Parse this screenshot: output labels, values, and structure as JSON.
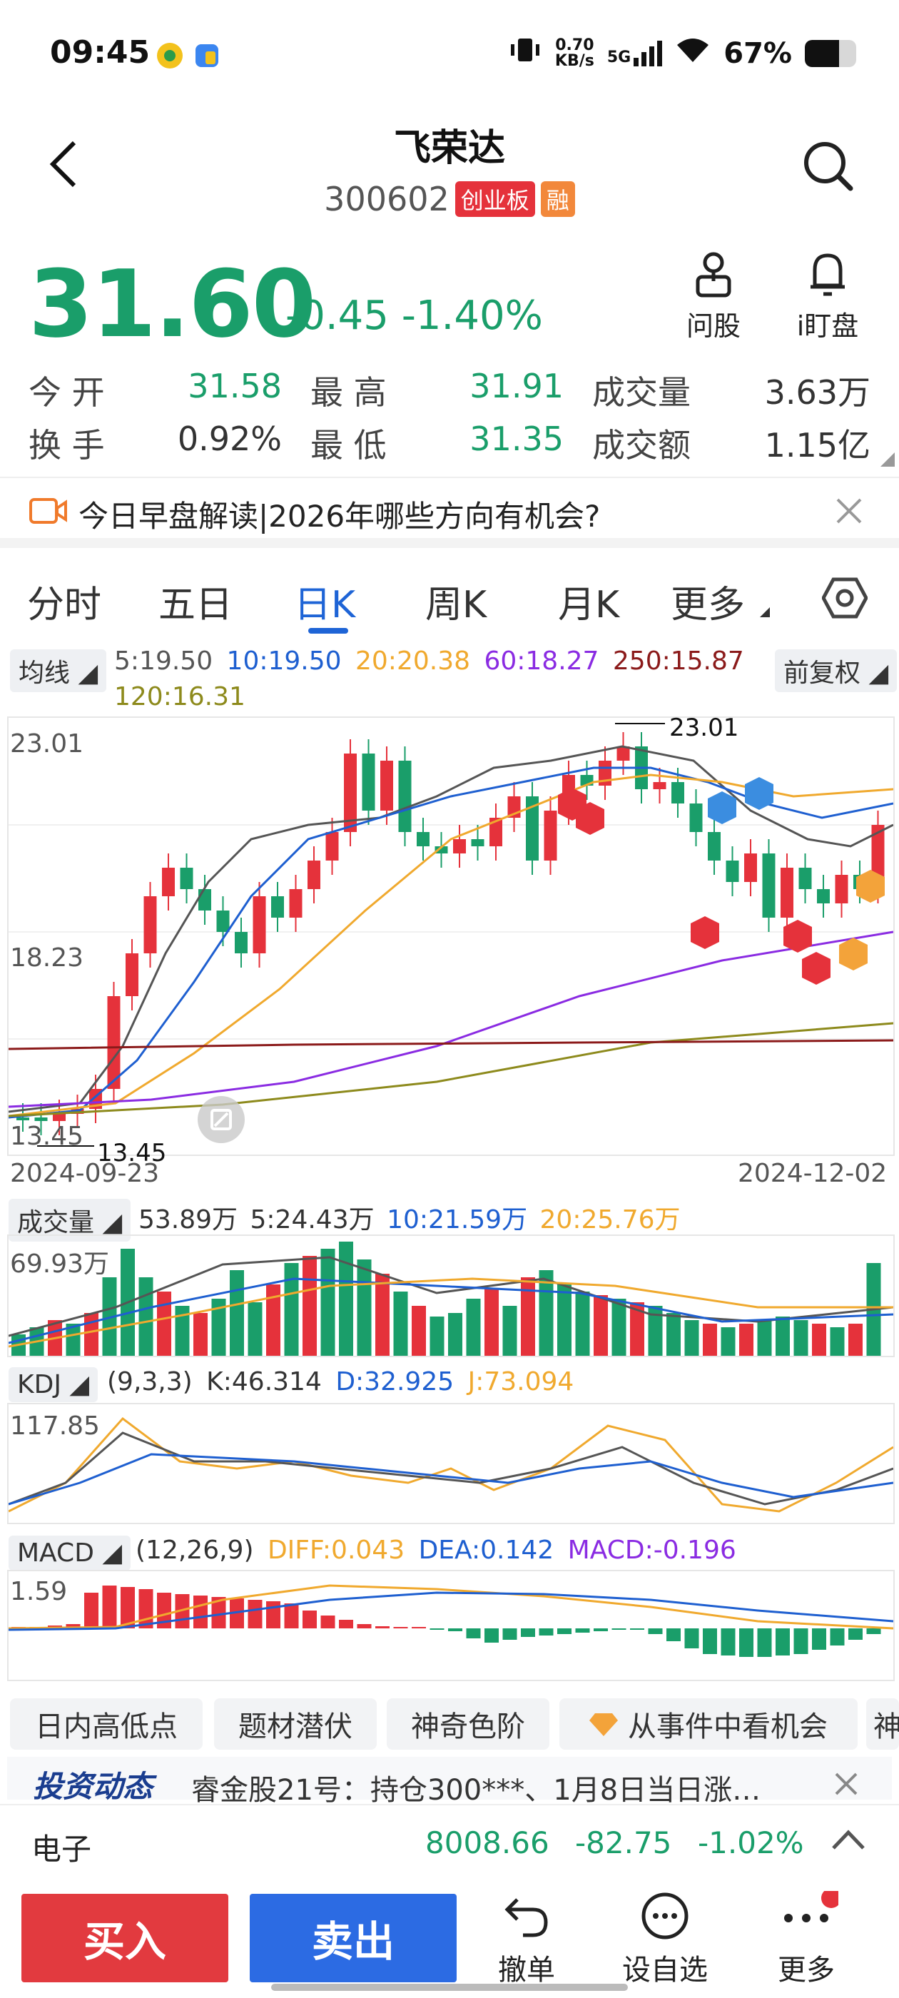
{
  "status": {
    "time": "09:45",
    "speed": "0.70",
    "speed_unit": "KB/s",
    "network": "5G",
    "battery": "67%"
  },
  "header": {
    "name": "飞荣达",
    "code": "300602",
    "badge_board": "创业板",
    "badge_margin": "融"
  },
  "quote": {
    "price": "31.60",
    "change": "-0.45",
    "change_pct": "-1.40%",
    "open_label": "今 开",
    "open": "31.58",
    "high_label": "最 高",
    "high": "31.91",
    "volume_label": "成交量",
    "volume": "3.63万",
    "turnover_label": "换 手",
    "turnover": "0.92%",
    "low_label": "最 低",
    "low": "31.35",
    "amount_label": "成交额",
    "amount": "1.15亿"
  },
  "tools": {
    "ask": "问股",
    "watch": "i盯盘"
  },
  "news": {
    "text": "今日早盘解读|2026年哪些方向有机会?"
  },
  "tabs": [
    "分时",
    "五日",
    "日K",
    "周K",
    "月K",
    "更多"
  ],
  "ma_bar": {
    "chip": "均线",
    "ma5": "5:19.50",
    "ma10": "10:19.50",
    "ma20": "20:20.38",
    "ma60": "60:18.27",
    "ma250": "250:15.87",
    "ma120": "120:16.31",
    "adjust": "前复权"
  },
  "colors": {
    "ma5": "#555555",
    "ma10": "#1e5fd0",
    "ma20": "#f0a92e",
    "ma60": "#8a2be2",
    "ma250": "#8b1a1a",
    "ma120": "#8d8a1c",
    "up": "#e5323b",
    "down": "#1a9e6a"
  },
  "kline": {
    "top_label": "23.01",
    "mid_label": "18.23",
    "bottom_label": "13.45",
    "max_marker": "23.01",
    "min_marker": "13.45",
    "date_start": "2024-09-23",
    "date_end": "2024-12-02"
  },
  "volume": {
    "chip": "成交量",
    "v0": "53.89万",
    "v5": "5:24.43万",
    "v10": "10:21.59万",
    "v20": "20:25.76万",
    "top_label": "69.93万"
  },
  "kdj": {
    "chip": "KDJ",
    "params": "(9,3,3)",
    "k": "K:46.314",
    "d": "D:32.925",
    "j": "J:73.094",
    "top_label": "117.85"
  },
  "macd": {
    "chip": "MACD",
    "params": "(12,26,9)",
    "diff": "DIFF:0.043",
    "dea": "DEA:0.142",
    "macd": "MACD:-0.196",
    "top_label": "1.59"
  },
  "feature_tags": [
    "日内高低点",
    "题材潜伏",
    "神奇色阶",
    "从事件中看机会",
    "神"
  ],
  "dynamic": {
    "logo": "投资动态",
    "text": "睿金股21号：持仓300***、1月8日当日涨…"
  },
  "sector": {
    "name": "电子",
    "value": "8008.66",
    "change": "-82.75",
    "pct": "-1.02%"
  },
  "bottom": {
    "buy": "买入",
    "sell": "卖出",
    "cancel": "撤单",
    "add": "设自选",
    "more": "更多"
  }
}
